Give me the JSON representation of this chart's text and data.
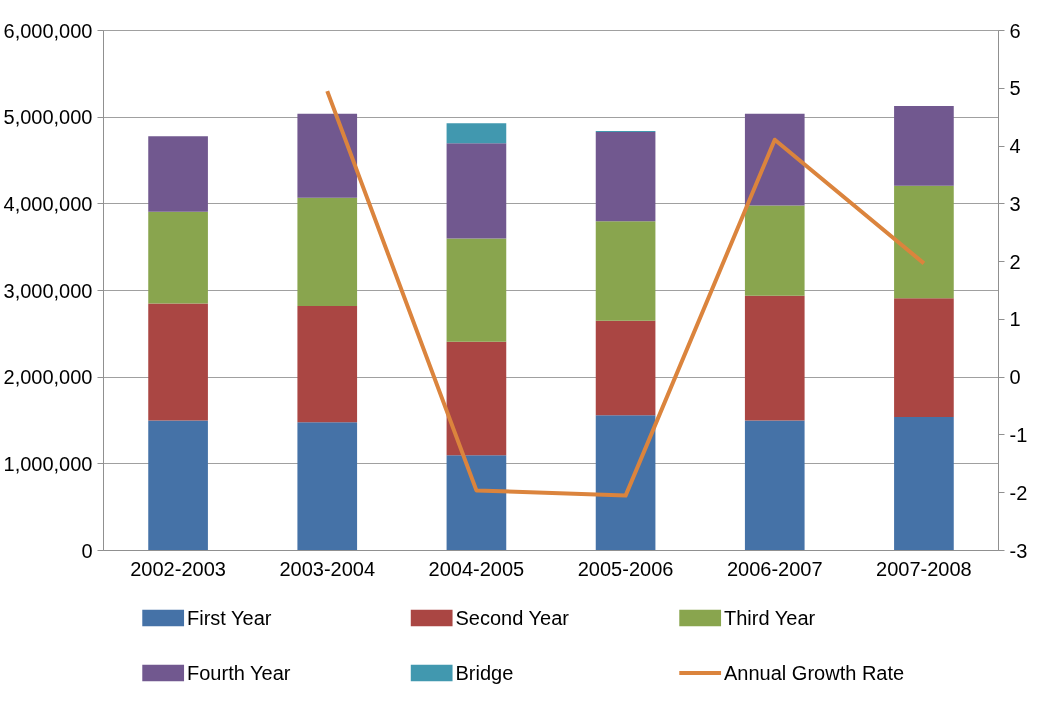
{
  "chart_data": {
    "type": "bar",
    "stacked": true,
    "categories": [
      "2002-2003",
      "2003-2004",
      "2004-2005",
      "2005-2006",
      "2006-2007",
      "2007-2008"
    ],
    "series": [
      {
        "name": "First  Year",
        "color": "#4572a7",
        "values": [
          1500000,
          1480000,
          1100000,
          1560000,
          1500000,
          1540000
        ]
      },
      {
        "name": "Second Year",
        "color": "#aa4643",
        "values": [
          1350000,
          1340000,
          1310000,
          1090000,
          1440000,
          1370000
        ]
      },
      {
        "name": "Third Year",
        "color": "#89a54e",
        "values": [
          1060000,
          1250000,
          1190000,
          1150000,
          1040000,
          1300000
        ]
      },
      {
        "name": "Fourth Year",
        "color": "#71588f",
        "values": [
          870000,
          970000,
          1100000,
          1030000,
          1060000,
          920000
        ]
      },
      {
        "name": "Bridge",
        "color": "#4198af",
        "values": [
          0,
          0,
          230000,
          10000,
          0,
          0
        ]
      },
      {
        "name": "Annual Growth Rate",
        "type": "line",
        "axis": "y2",
        "color": "#db843d",
        "values": [
          null,
          4.95,
          -1.96,
          -2.05,
          4.11,
          1.97
        ]
      }
    ],
    "ylim": [
      0,
      6000000
    ],
    "yticks": [
      {
        "value": 0,
        "label": "0"
      },
      {
        "value": 1000000,
        "label": "1,000,000"
      },
      {
        "value": 2000000,
        "label": "2,000,000"
      },
      {
        "value": 3000000,
        "label": "3,000,000"
      },
      {
        "value": 4000000,
        "label": "4,000,000"
      },
      {
        "value": 5000000,
        "label": "5,000,000"
      },
      {
        "value": 6000000,
        "label": "6,000,000"
      }
    ],
    "y2lim": [
      -3,
      6
    ],
    "y2ticks": [
      -3,
      -2,
      -1,
      0,
      1,
      2,
      3,
      4,
      5,
      6
    ],
    "grid": "y",
    "legend": "bottom"
  }
}
